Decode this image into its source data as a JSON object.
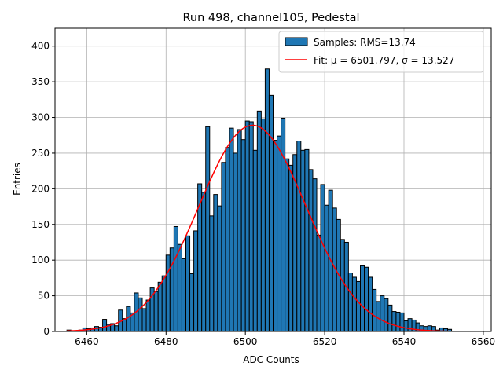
{
  "chart_data": {
    "type": "bar",
    "title": "Run 498, channel105, Pedestal",
    "xlabel": "ADC Counts",
    "ylabel": "Entries",
    "xlim": [
      6452,
      6562
    ],
    "ylim": [
      0,
      425
    ],
    "x_ticks": [
      6460,
      6480,
      6500,
      6520,
      6540,
      6560
    ],
    "y_ticks": [
      0,
      50,
      100,
      150,
      200,
      250,
      300,
      350,
      400
    ],
    "grid": true,
    "legend_position": "top-right",
    "bin_width": 1,
    "bins_start": 6455,
    "counts": [
      2,
      1,
      1,
      2,
      5,
      4,
      5,
      7,
      6,
      17,
      10,
      11,
      8,
      30,
      18,
      35,
      26,
      54,
      47,
      32,
      44,
      61,
      56,
      69,
      78,
      107,
      117,
      147,
      122,
      102,
      134,
      81,
      141,
      207,
      195,
      287,
      162,
      192,
      176,
      237,
      258,
      285,
      250,
      283,
      269,
      295,
      294,
      254,
      309,
      298,
      368,
      331,
      268,
      274,
      299,
      242,
      233,
      248,
      267,
      254,
      255,
      227,
      214,
      135,
      206,
      177,
      198,
      173,
      157,
      129,
      125,
      82,
      76,
      70,
      92,
      90,
      76,
      59,
      42,
      50,
      46,
      37,
      28,
      27,
      26,
      15,
      18,
      16,
      12,
      8,
      7,
      8,
      7,
      2,
      5,
      4,
      3
    ],
    "fit_mu": 6501.797,
    "fit_sigma": 13.527,
    "fit_amplitude": 289,
    "colors": {
      "bar_fill": "#1f77b4",
      "bar_edge": "#000000",
      "fit_line": "#ff0000",
      "grid": "#b0b0b0"
    },
    "legend": [
      {
        "label": "Samples: RMS=13.74",
        "kind": "patch"
      },
      {
        "label": "Fit: μ = 6501.797, σ = 13.527",
        "kind": "line"
      }
    ]
  }
}
